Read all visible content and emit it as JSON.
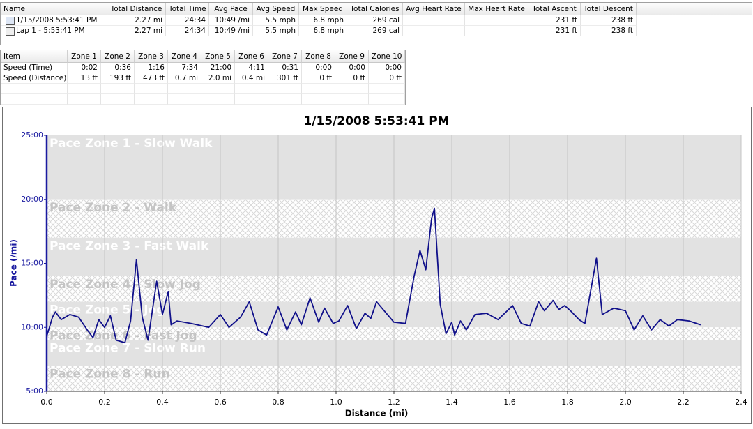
{
  "activities": {
    "columns": [
      "Name",
      "Total Distance",
      "Total Time",
      "Avg Pace",
      "Avg Speed",
      "Max Speed",
      "Total Calories",
      "Avg Heart Rate",
      "Max Heart Rate",
      "Total Ascent",
      "Total Descent"
    ],
    "rows": [
      [
        "1/15/2008 5:53:41 PM",
        "2.27 mi",
        "24:34",
        "10:49 /mi",
        "5.5 mph",
        "6.8 mph",
        "269 cal",
        "",
        "",
        "231 ft",
        "238 ft"
      ],
      [
        "Lap 1 - 5:53:41 PM",
        "2.27 mi",
        "24:34",
        "10:49 /mi",
        "5.5 mph",
        "6.8 mph",
        "269 cal",
        "",
        "",
        "231 ft",
        "238 ft"
      ]
    ]
  },
  "zone_table": {
    "columns": [
      "Item",
      "Zone 1",
      "Zone 2",
      "Zone 3",
      "Zone 4",
      "Zone 5",
      "Zone 6",
      "Zone 7",
      "Zone 8",
      "Zone 9",
      "Zone 10"
    ],
    "rows": [
      [
        "Speed (Time)",
        "0:02",
        "0:36",
        "1:16",
        "7:34",
        "21:00",
        "4:11",
        "0:31",
        "0:00",
        "0:00",
        "0:00"
      ],
      [
        "Speed (Distance)",
        "13 ft",
        "193 ft",
        "473 ft",
        "0.7 mi",
        "2.0 mi",
        "0.4 mi",
        "301 ft",
        "0 ft",
        "0 ft",
        "0 ft"
      ]
    ]
  },
  "chart_data": {
    "type": "line",
    "title": "1/15/2008 5:53:41 PM",
    "x_label": "Distance (mi)",
    "y_label": "Pace (/mi)",
    "color": "#10108a",
    "xlim": [
      0,
      2.4
    ],
    "xticks": [
      {
        "value": 0,
        "label": "0.0"
      },
      0.2,
      0.4,
      0.6,
      0.8,
      {
        "value": 1,
        "label": "1.0"
      },
      1.2,
      1.4,
      1.6,
      1.8,
      {
        "value": 2,
        "label": "2.0"
      },
      2.2,
      2.4
    ],
    "ylim": [
      5,
      25
    ],
    "yticks": [
      {
        "value": 5,
        "label": "5:00"
      },
      {
        "value": 10,
        "label": "10:00"
      },
      {
        "value": 15,
        "label": "15:00"
      },
      {
        "value": 20,
        "label": "20:00"
      },
      {
        "value": 25,
        "label": "25:00"
      }
    ],
    "grid": true,
    "zones": [
      {
        "label": "Pace Zone 1 - Slow Walk",
        "range": [
          20,
          25
        ]
      },
      {
        "label": "Pace Zone 2 - Walk",
        "range": [
          17,
          20
        ]
      },
      {
        "label": "Pace Zone 3 - Fast Walk",
        "range": [
          14,
          17
        ]
      },
      {
        "label": "Pace Zone 4 - Slow Jog",
        "range": [
          12,
          14
        ]
      },
      {
        "label": "Pace Zone 5 - Jog",
        "range": [
          10,
          12
        ]
      },
      {
        "label": "Pace Zone 6 - Fast Jog",
        "range": [
          9,
          10
        ]
      },
      {
        "label": "Pace Zone 7 - Slow Run",
        "range": [
          7,
          9
        ]
      },
      {
        "label": "Pace Zone 8 - Run",
        "range": [
          5,
          7
        ]
      }
    ],
    "x": [
      0.0,
      0.02,
      0.03,
      0.05,
      0.08,
      0.11,
      0.14,
      0.16,
      0.18,
      0.2,
      0.22,
      0.24,
      0.27,
      0.29,
      0.31,
      0.33,
      0.35,
      0.38,
      0.4,
      0.42,
      0.43,
      0.45,
      0.5,
      0.56,
      0.6,
      0.63,
      0.67,
      0.7,
      0.73,
      0.76,
      0.8,
      0.83,
      0.86,
      0.88,
      0.91,
      0.94,
      0.96,
      0.99,
      1.01,
      1.04,
      1.07,
      1.1,
      1.12,
      1.14,
      1.17,
      1.2,
      1.24,
      1.27,
      1.29,
      1.31,
      1.33,
      1.34,
      1.36,
      1.38,
      1.4,
      1.41,
      1.43,
      1.45,
      1.48,
      1.52,
      1.56,
      1.61,
      1.64,
      1.67,
      1.7,
      1.72,
      1.75,
      1.77,
      1.79,
      1.81,
      1.84,
      1.86,
      1.9,
      1.92,
      1.96,
      2.0,
      2.03,
      2.06,
      2.09,
      2.12,
      2.15,
      2.18,
      2.22,
      2.26
    ],
    "values": [
      9.3,
      10.8,
      11.2,
      10.6,
      11.0,
      10.8,
      9.8,
      9.2,
      10.6,
      10.0,
      10.9,
      9.0,
      8.8,
      10.5,
      15.3,
      10.8,
      9.0,
      13.6,
      11.0,
      12.8,
      10.2,
      10.5,
      10.3,
      10.0,
      11.0,
      10.0,
      10.8,
      12.0,
      9.8,
      9.4,
      11.6,
      9.8,
      11.2,
      10.2,
      12.3,
      10.4,
      11.5,
      10.3,
      10.5,
      11.7,
      9.9,
      11.1,
      10.7,
      12.0,
      11.2,
      10.4,
      10.3,
      14.0,
      16.0,
      14.5,
      18.5,
      19.3,
      11.8,
      9.5,
      10.4,
      9.4,
      10.5,
      9.8,
      11.0,
      11.1,
      10.6,
      11.7,
      10.3,
      10.1,
      12.0,
      11.3,
      12.1,
      11.4,
      11.7,
      11.3,
      10.6,
      10.3,
      15.4,
      11.0,
      11.5,
      11.3,
      9.8,
      10.9,
      9.8,
      10.6,
      10.1,
      10.6,
      10.5,
      10.2
    ]
  }
}
